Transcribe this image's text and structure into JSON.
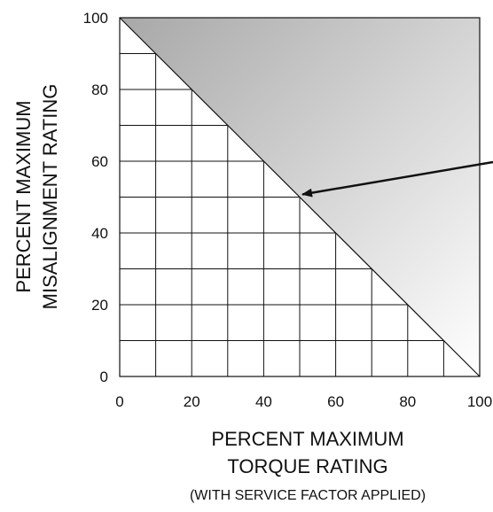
{
  "chart_data": {
    "type": "area",
    "x": [
      0,
      100
    ],
    "y": [
      100,
      0
    ],
    "boundary": {
      "from": [
        0,
        100
      ],
      "to": [
        100,
        0
      ]
    },
    "xlim": [
      0,
      100
    ],
    "ylim": [
      0,
      100
    ],
    "xticks": [
      "0",
      "20",
      "40",
      "60",
      "80",
      "100"
    ],
    "yticks": [
      "0",
      "20",
      "40",
      "60",
      "80",
      "100"
    ],
    "grid": true,
    "grid_step": 10,
    "xlabel_lines": [
      "PERCENT MAXIMUM",
      "TORQUE RATING",
      "(WITH SERVICE FACTOR APPLIED)"
    ],
    "ylabel_lines": [
      "PERCENT MAXIMUM",
      "MISALIGNMENT RATING"
    ],
    "annotation_arrow_target": [
      50,
      50
    ],
    "colors": {
      "shaded_region_light": "#ffffff",
      "shaded_region_dark": "#a8a8a8",
      "lines": "#111111"
    }
  }
}
